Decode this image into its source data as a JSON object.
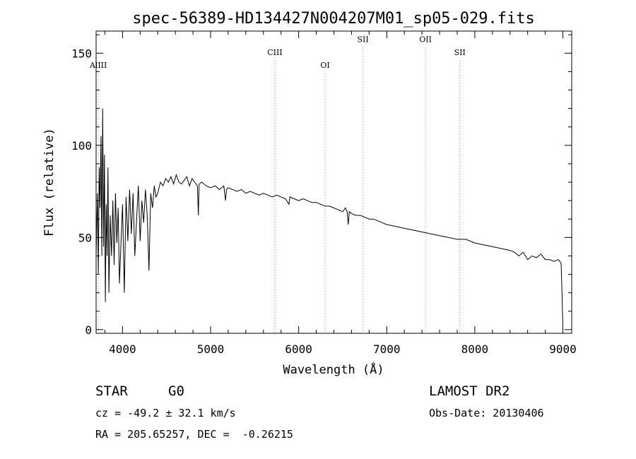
{
  "chart_data": {
    "type": "line",
    "title": "spec-56389-HD134427N004207M01_sp05-029.fits",
    "xlabel": "Wavelength (Å)",
    "ylabel": "Flux (relative)",
    "xlim": [
      3700,
      9100
    ],
    "ylim": [
      -2,
      162
    ],
    "xticks": [
      4000,
      5000,
      6000,
      7000,
      8000,
      9000
    ],
    "yticks": [
      0,
      50,
      100,
      150
    ],
    "series": [
      {
        "name": "spectrum",
        "x": [
          3700,
          3715,
          3725,
          3735,
          3745,
          3755,
          3765,
          3775,
          3785,
          3795,
          3805,
          3815,
          3825,
          3835,
          3845,
          3860,
          3875,
          3890,
          3905,
          3920,
          3935,
          3950,
          3965,
          3980,
          4000,
          4020,
          4040,
          4060,
          4080,
          4100,
          4120,
          4140,
          4160,
          4180,
          4200,
          4220,
          4240,
          4260,
          4280,
          4300,
          4320,
          4340,
          4360,
          4380,
          4400,
          4430,
          4460,
          4490,
          4520,
          4550,
          4580,
          4610,
          4640,
          4670,
          4700,
          4730,
          4760,
          4790,
          4820,
          4850,
          4861,
          4870,
          4900,
          4950,
          5000,
          5050,
          5100,
          5150,
          5170,
          5180,
          5200,
          5250,
          5300,
          5350,
          5400,
          5450,
          5500,
          5550,
          5600,
          5650,
          5700,
          5750,
          5800,
          5850,
          5890,
          5900,
          5950,
          6000,
          6050,
          6100,
          6150,
          6200,
          6250,
          6300,
          6350,
          6400,
          6450,
          6500,
          6530,
          6550,
          6563,
          6575,
          6600,
          6650,
          6700,
          6750,
          6800,
          6850,
          6900,
          6950,
          7000,
          7100,
          7200,
          7300,
          7400,
          7500,
          7600,
          7700,
          7800,
          7900,
          8000,
          8100,
          8200,
          8300,
          8400,
          8450,
          8500,
          8550,
          8600,
          8650,
          8700,
          8750,
          8800,
          8850,
          8900,
          8950,
          8980,
          8990,
          9000
        ],
        "y": [
          40,
          74,
          30,
          88,
          66,
          105,
          40,
          120,
          45,
          95,
          15,
          68,
          40,
          88,
          20,
          62,
          40,
          70,
          35,
          74,
          47,
          66,
          25,
          44,
          68,
          20,
          72,
          48,
          76,
          52,
          74,
          40,
          60,
          78,
          48,
          70,
          58,
          76,
          62,
          32,
          74,
          66,
          78,
          72,
          74,
          80,
          78,
          82,
          80,
          83,
          79,
          84,
          80,
          79,
          81,
          83,
          78,
          82,
          80,
          78,
          62,
          79,
          80,
          78,
          77,
          78,
          76,
          78,
          70,
          76,
          77,
          76,
          75,
          76,
          74,
          75,
          74,
          73,
          74,
          73,
          72,
          73,
          72,
          71,
          68,
          72,
          71,
          70,
          71,
          70,
          69,
          69,
          68,
          67,
          67,
          66,
          65,
          64,
          66,
          64,
          57,
          64,
          63,
          62,
          62,
          61,
          60,
          60,
          59,
          58,
          57,
          56,
          55,
          54,
          53,
          52,
          51,
          50,
          49,
          49,
          47,
          46,
          45,
          44,
          43,
          42,
          40,
          42,
          38,
          40,
          39,
          41,
          38,
          38,
          37,
          38,
          36,
          20,
          2
        ]
      }
    ],
    "line_markers": [
      {
        "label": "AlIII",
        "x": 3725,
        "y": 142
      },
      {
        "label": "CIII",
        "x": 5730,
        "y": 149
      },
      {
        "label": "OI",
        "x": 6300,
        "y": 142
      },
      {
        "label": "SII",
        "x": 6730,
        "y": 156
      },
      {
        "label": "OII",
        "x": 7440,
        "y": 156
      },
      {
        "label": "SII",
        "x": 7830,
        "y": 149
      }
    ]
  },
  "info": {
    "object_class": "STAR",
    "subclass": "G0",
    "redshift_text": "cz = -49.2 ± 32.1 km/s",
    "coords_text": "RA = 205.65257, DEC =  -0.26215",
    "survey": "LAMOST DR2",
    "obs_date": "Obs-Date: 20130406"
  }
}
